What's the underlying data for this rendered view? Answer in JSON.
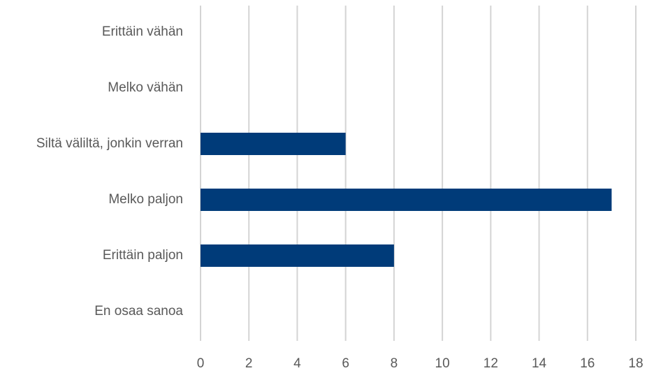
{
  "chart_data": {
    "type": "barh",
    "categories": [
      "Erittäin vähän",
      "Melko vähän",
      "Siltä väliltä, jonkin verran",
      "Melko paljon",
      "Erittäin paljon",
      "En osaa sanoa"
    ],
    "values": [
      0,
      0,
      6,
      17,
      8,
      0
    ],
    "color": "#003b79",
    "xlim": [
      0,
      18
    ],
    "xticks": [
      0,
      2,
      4,
      6,
      8,
      10,
      12,
      14,
      16,
      18
    ],
    "grid": true
  }
}
